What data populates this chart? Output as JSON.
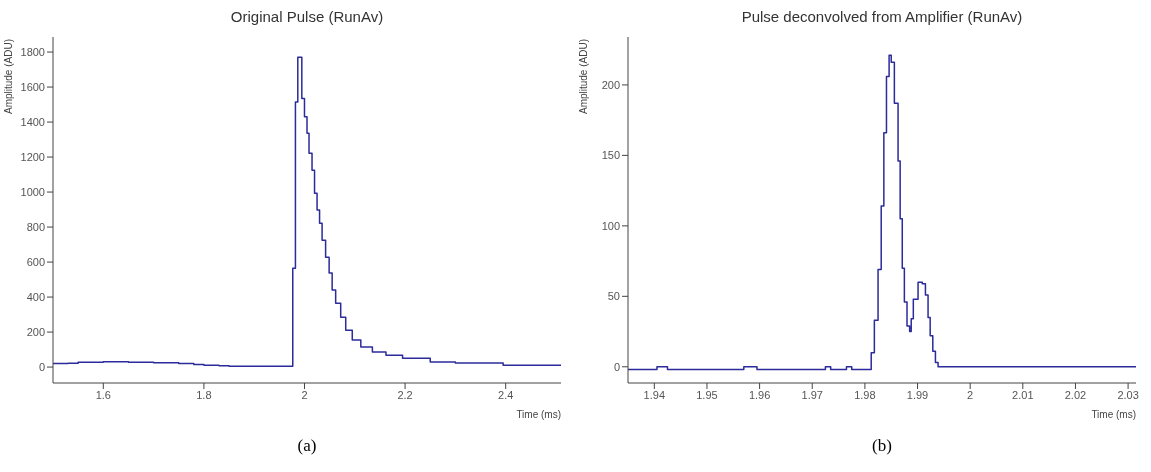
{
  "chart_data": [
    {
      "type": "step",
      "title": "Original Pulse (RunAv)",
      "xlabel": "Time (ms)",
      "ylabel": "Amplitude (ADU)",
      "annotations": [
        "(a)"
      ],
      "x": [
        1.5,
        1.53,
        1.55,
        1.6,
        1.65,
        1.7,
        1.75,
        1.78,
        1.8,
        1.83,
        1.85,
        1.9,
        1.95,
        1.9767,
        1.982,
        1.9867,
        1.9947,
        2.0,
        2.005,
        2.009,
        2.015,
        2.02,
        2.025,
        2.03,
        2.035,
        2.042,
        2.049,
        2.055,
        2.062,
        2.072,
        2.082,
        2.095,
        2.112,
        2.135,
        2.162,
        2.195,
        2.25,
        2.3,
        2.395,
        2.51
      ],
      "series": [
        {
          "color": "#2b2b9c",
          "values": [
            20,
            22,
            28,
            30,
            28,
            25,
            20,
            15,
            10,
            8,
            5,
            5,
            5,
            565,
            1515,
            1770,
            1534,
            1430,
            1336,
            1222,
            1125,
            993,
            897,
            822,
            725,
            628,
            537,
            440,
            365,
            285,
            211,
            154,
            114,
            86,
            68,
            51,
            29,
            23,
            11,
            10
          ]
        }
      ],
      "xlim": [
        1.5,
        2.51
      ],
      "ylim": [
        -91,
        1886
      ],
      "xticks": [
        1.6,
        1.8,
        2,
        2.2,
        2.4
      ],
      "yticks": [
        0,
        200,
        400,
        600,
        800,
        1000,
        1200,
        1400,
        1600,
        1800
      ],
      "grid": false,
      "legend": false
    },
    {
      "type": "step",
      "title": "Pulse deconvolved from Amplifier (RunAv)",
      "xlabel": "Time (ms)",
      "ylabel": "Amplitude (ADU)",
      "annotations": [
        "(b)"
      ],
      "x": [
        1.935,
        1.9405,
        1.9425,
        1.957,
        1.9595,
        1.9725,
        1.9735,
        1.9765,
        1.9775,
        1.9812,
        1.9818,
        1.9825,
        1.9831,
        1.9836,
        1.9841,
        1.9846,
        1.985,
        1.9856,
        1.9863,
        1.9867,
        1.9871,
        1.9875,
        1.988,
        1.9885,
        1.9888,
        1.9892,
        1.9901,
        1.9909,
        1.9915,
        1.992,
        1.9924,
        1.9929,
        1.9934,
        1.9939,
        2.0315
      ],
      "series": [
        {
          "color": "#2b2b9c",
          "values": [
            -2,
            0,
            -2,
            0,
            -2,
            0,
            -2,
            0,
            -2,
            10,
            33,
            69,
            114,
            166,
            206,
            221,
            216,
            187,
            146,
            105,
            70,
            46,
            29,
            25,
            34,
            48,
            60,
            59,
            51,
            35,
            22,
            11,
            3,
            0,
            0
          ]
        }
      ],
      "xlim": [
        1.935,
        2.0315
      ],
      "ylim": [
        -11.5,
        234
      ],
      "xticks": [
        1.94,
        1.95,
        1.96,
        1.97,
        1.98,
        1.99,
        2,
        2.01,
        2.02,
        2.03
      ],
      "yticks": [
        0,
        50,
        100,
        150,
        200
      ],
      "grid": false,
      "legend": false
    }
  ]
}
